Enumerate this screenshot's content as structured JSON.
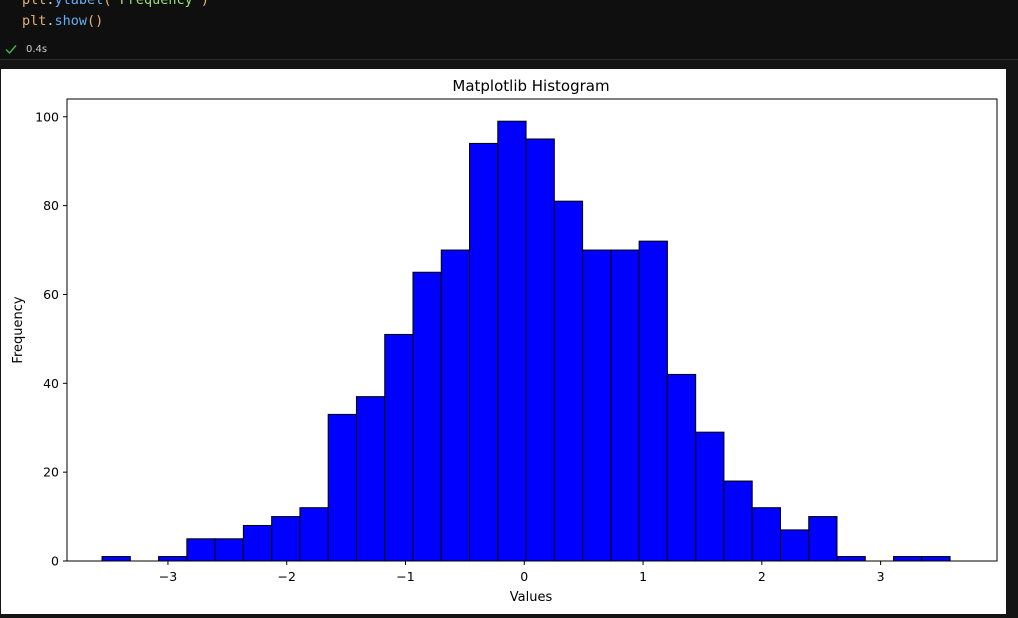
{
  "code": {
    "line1": {
      "obj": "plt",
      "dot": ".",
      "fn": "ylabel",
      "open": "(",
      "arg": "'Frequency'",
      "close": ")"
    },
    "line2": {
      "obj": "plt",
      "dot": ".",
      "fn": "show",
      "parens": "()"
    }
  },
  "cell_status": {
    "icon": "check-icon",
    "success_color": "#3fb950",
    "exec_time": "0.4s"
  },
  "chart_data": {
    "type": "bar",
    "title": "Matplotlib Histogram",
    "xlabel": "Values",
    "ylabel": "Frequency",
    "bar_color": "#0000ff",
    "edge_color": "#000000",
    "xlim": [
      -3.85,
      3.98
    ],
    "ylim": [
      0,
      104
    ],
    "x_ticks": [
      -3,
      -2,
      -1,
      0,
      1,
      2,
      3
    ],
    "x_tick_labels": [
      "−3",
      "−2",
      "−1",
      "0",
      "1",
      "2",
      "3"
    ],
    "y_ticks": [
      0,
      20,
      40,
      60,
      80,
      100
    ],
    "y_tick_labels": [
      "0",
      "20",
      "40",
      "60",
      "80",
      "100"
    ],
    "bin_start": -3.555,
    "bin_width": 0.238,
    "values": [
      1,
      0,
      1,
      5,
      5,
      8,
      10,
      12,
      33,
      37,
      51,
      65,
      70,
      94,
      99,
      95,
      81,
      70,
      70,
      72,
      42,
      29,
      18,
      12,
      7,
      10,
      1,
      0,
      1,
      1
    ],
    "grid": false,
    "legend": "none"
  }
}
